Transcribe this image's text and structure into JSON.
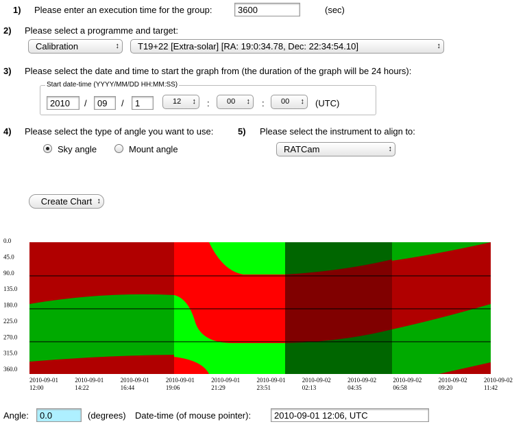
{
  "step1": {
    "number": "1)",
    "label": "Please enter an execution time for the group:",
    "value": "3600",
    "unit": "(sec)"
  },
  "step2": {
    "number": "2)",
    "label": "Please select a programme and target:",
    "programme": "Calibration",
    "target": "T19+22 [Extra-solar] [RA:  19:0:34.78, Dec:  22:34:54.10]"
  },
  "step3": {
    "number": "3)",
    "label": "Please select the date and time to start the graph from (the duration of the graph will be 24 hours):",
    "group_label": "Start date-time (YYYY/MM/DD HH:MM:SS)",
    "year": "2010",
    "month": "09",
    "day": "1",
    "hour": "12",
    "minute": "00",
    "second": "00",
    "separators": [
      "/",
      "/",
      ":",
      ":"
    ],
    "timezone": "(UTC)"
  },
  "step4": {
    "number": "4)",
    "label": "Please select the type of angle you want to use:",
    "options": [
      "Sky angle",
      "Mount angle"
    ]
  },
  "step5": {
    "number": "5)",
    "label": "Please select the instrument to align to:",
    "instrument": "RATCam"
  },
  "button": "Create Chart",
  "graph": {
    "y_labels": [
      "0.0",
      "45.0",
      "90.0",
      "135.0",
      "180.0",
      "225.0",
      "270.0",
      "315.0",
      "360.0"
    ],
    "x_labels": [
      [
        "2010-09-01",
        "12:00"
      ],
      [
        "2010-09-01",
        "14:22"
      ],
      [
        "2010-09-01",
        "16:44"
      ],
      [
        "2010-09-01",
        "19:06"
      ],
      [
        "2010-09-01",
        "21:29"
      ],
      [
        "2010-09-01",
        "23:51"
      ],
      [
        "2010-09-02",
        "02:13"
      ],
      [
        "2010-09-02",
        "04:35"
      ],
      [
        "2010-09-02",
        "06:58"
      ],
      [
        "2010-09-02",
        "09:20"
      ],
      [
        "2010-09-02",
        "11:42"
      ]
    ]
  },
  "footer": {
    "angle_label": "Angle:",
    "angle": "0.0",
    "unit": "(degrees)",
    "datetime_label": "Date-time (of mouse pointer):",
    "datetime": "2010-09-01 12:06, UTC"
  }
}
